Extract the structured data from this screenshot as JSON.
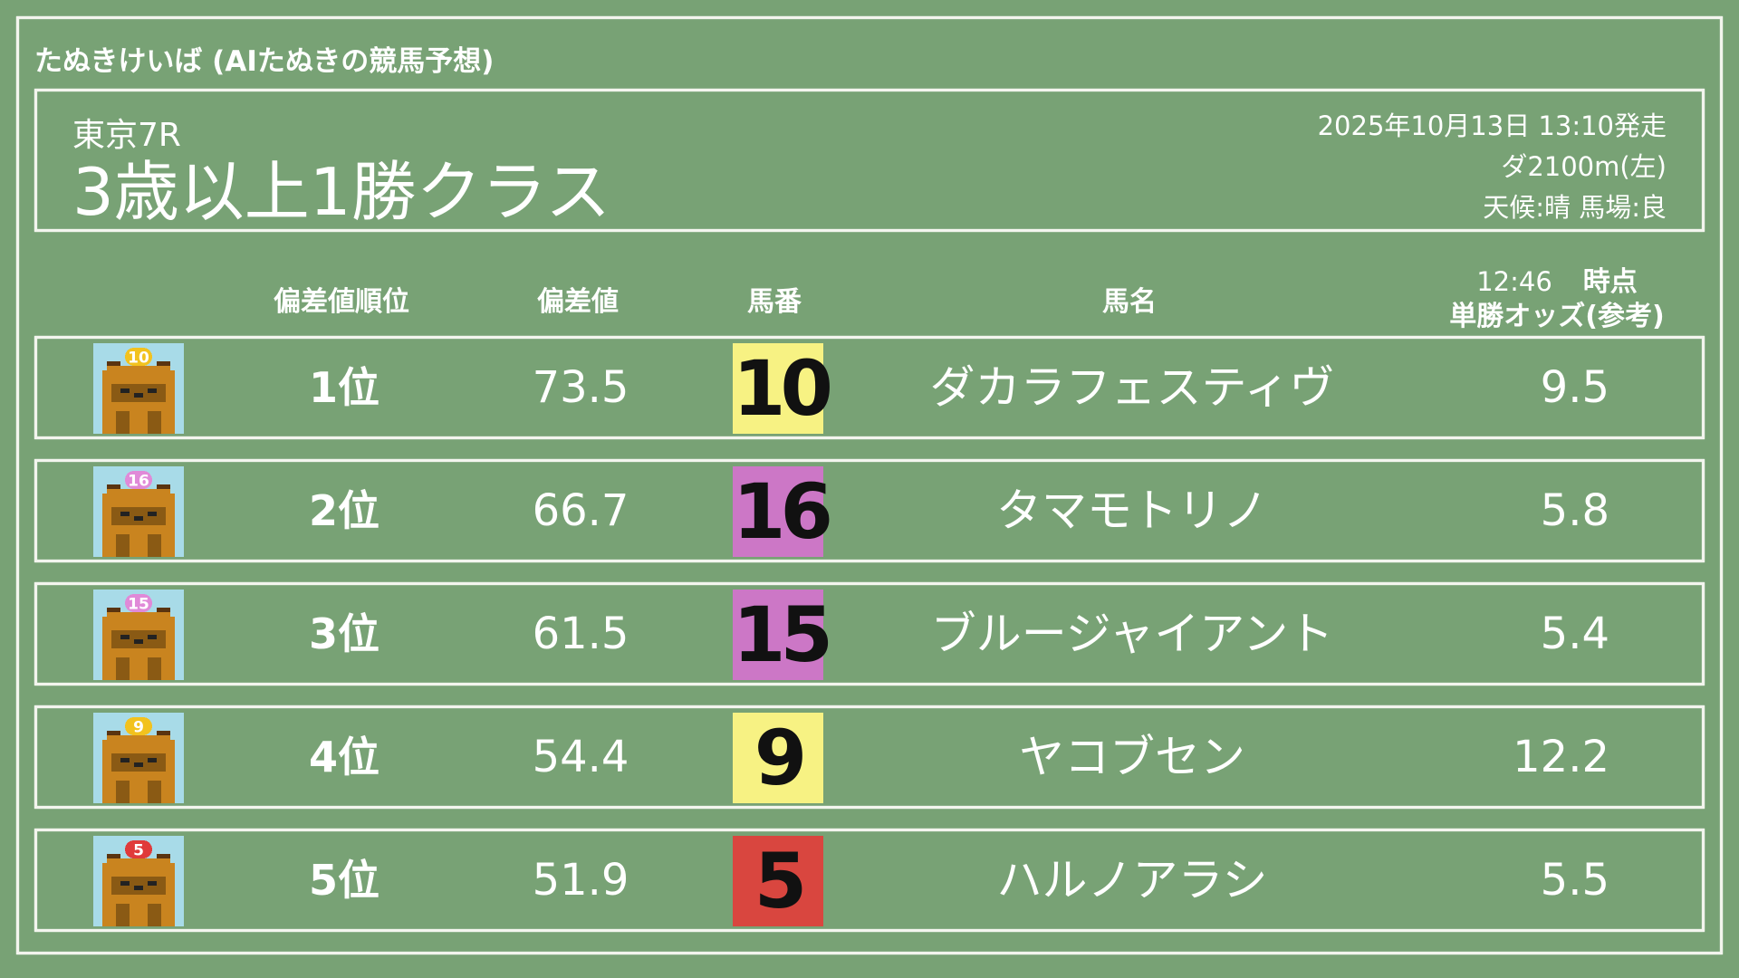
{
  "app_title": "たぬきけいば (AIたぬきの競馬予想)",
  "race": {
    "venue": "東京7R",
    "name": "3歳以上1勝クラス",
    "datetime": "2025年10月13日 13:10発走",
    "course": "ダ2100m(左)",
    "conditions": "天候:晴 馬場:良"
  },
  "columns": {
    "rank": "偏差値順位",
    "score": "偏差値",
    "number": "馬番",
    "name": "馬名",
    "odds_time": "12:46",
    "odds_time_suffix": "時点",
    "odds": "単勝オッズ(参考)"
  },
  "colors": {
    "background": "#78a275",
    "yellow": "#f7f283",
    "pink": "#cc77c6",
    "red": "#d9463f",
    "avatar_bg": "#a8dbe8",
    "tanuki": "#c9841f"
  },
  "rows": [
    {
      "rank": "1位",
      "score": "73.5",
      "number": "10",
      "name": "ダカラフェスティヴ",
      "odds": "9.5",
      "color": "#f7f283",
      "cap": "#f2c21e",
      "icon": "tanuki-avatar"
    },
    {
      "rank": "2位",
      "score": "66.7",
      "number": "16",
      "name": "タマモトリノ",
      "odds": "5.8",
      "color": "#cc77c6",
      "cap": "#e08ad8",
      "icon": "tanuki-avatar"
    },
    {
      "rank": "3位",
      "score": "61.5",
      "number": "15",
      "name": "ブルージャイアント",
      "odds": "5.4",
      "color": "#cc77c6",
      "cap": "#e08ad8",
      "icon": "tanuki-avatar"
    },
    {
      "rank": "4位",
      "score": "54.4",
      "number": "9",
      "name": "ヤコブセン",
      "odds": "12.2",
      "color": "#f7f283",
      "cap": "#f2c21e",
      "icon": "tanuki-avatar"
    },
    {
      "rank": "5位",
      "score": "51.9",
      "number": "5",
      "name": "ハルノアラシ",
      "odds": "5.5",
      "color": "#d9463f",
      "cap": "#e03a3a",
      "icon": "tanuki-avatar"
    }
  ]
}
